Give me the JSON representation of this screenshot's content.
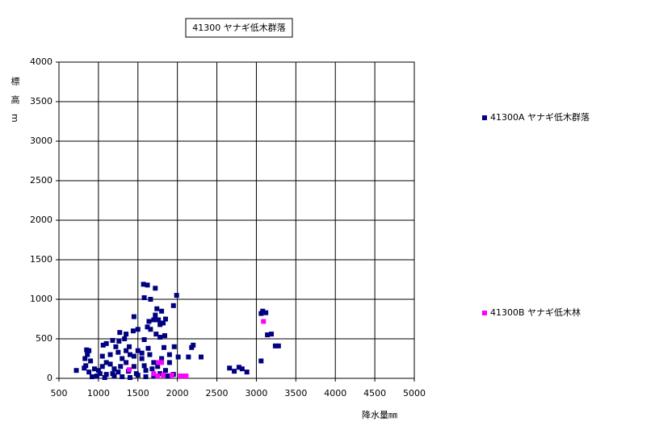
{
  "chart_data": {
    "type": "scatter",
    "title": "41300 ヤナギ低木群落",
    "x_label": "降水量㎜",
    "y_label": "標高m",
    "xlim": [
      500,
      5000
    ],
    "ylim": [
      0,
      4000
    ],
    "xticks": [
      500,
      1000,
      1500,
      2000,
      2500,
      3000,
      3500,
      4000,
      4500,
      5000
    ],
    "yticks": [
      0,
      500,
      1000,
      1500,
      2000,
      2500,
      3000,
      3500,
      4000
    ],
    "grid": true,
    "legend": "right",
    "series": [
      {
        "name": "41300A ヤナギ低木群落",
        "color": "#000080",
        "x": [
          1570,
          1620,
          1720,
          1990,
          1580,
          1660,
          1950,
          1740,
          1800,
          1720,
          1450,
          1850,
          1760,
          1700,
          1640,
          1820,
          1780,
          1620,
          1660,
          1500,
          1440,
          1270,
          1350,
          1730,
          1840,
          1780,
          1330,
          1580,
          1180,
          1260,
          1100,
          1060,
          1220,
          1390,
          1960,
          1830,
          1630,
          2200,
          2180,
          2010,
          2140,
          2300,
          1900,
          850,
          880,
          860,
          830,
          900,
          840,
          820,
          720,
          880,
          950,
          1000,
          1020,
          1050,
          1100,
          1150,
          1200,
          1250,
          1300,
          1350,
          1400,
          1450,
          1500,
          1550,
          1600,
          1650,
          1700,
          1750,
          1800,
          1850,
          1900,
          1950,
          1100,
          1200,
          1300,
          1400,
          1500,
          1600,
          1700,
          1150,
          1250,
          1350,
          1450,
          1550,
          1050,
          980,
          920,
          1080,
          1180,
          1280,
          1380,
          1480,
          1580,
          1680,
          1780,
          1880,
          2660,
          2720,
          2780,
          2820,
          2880,
          3060,
          3060,
          3080,
          3120,
          3140,
          3190,
          3240,
          3280
        ],
        "values": [
          1190,
          1180,
          1140,
          1050,
          1020,
          1000,
          920,
          880,
          850,
          800,
          780,
          750,
          740,
          740,
          720,
          700,
          680,
          650,
          620,
          620,
          600,
          580,
          560,
          560,
          540,
          520,
          500,
          490,
          480,
          470,
          440,
          420,
          400,
          400,
          400,
          390,
          380,
          420,
          390,
          270,
          270,
          270,
          300,
          360,
          350,
          300,
          250,
          220,
          160,
          130,
          100,
          80,
          120,
          100,
          60,
          150,
          200,
          180,
          120,
          80,
          250,
          200,
          300,
          150,
          350,
          250,
          100,
          300,
          200,
          150,
          250,
          100,
          200,
          50,
          50,
          30,
          20,
          10,
          40,
          20,
          30,
          300,
          330,
          350,
          280,
          320,
          280,
          30,
          20,
          10,
          60,
          150,
          90,
          60,
          160,
          120,
          60,
          30,
          130,
          90,
          140,
          120,
          80,
          220,
          820,
          850,
          830,
          550,
          560,
          410,
          410
        ]
      },
      {
        "name": "41300B ヤナギ低木林",
        "color": "#ff00ff",
        "x": [
          1390,
          1700,
          1760,
          1800,
          1820,
          1930,
          2040,
          2080,
          2110,
          3090,
          1750
        ],
        "values": [
          110,
          60,
          200,
          200,
          40,
          40,
          30,
          30,
          30,
          720,
          30
        ]
      }
    ]
  }
}
